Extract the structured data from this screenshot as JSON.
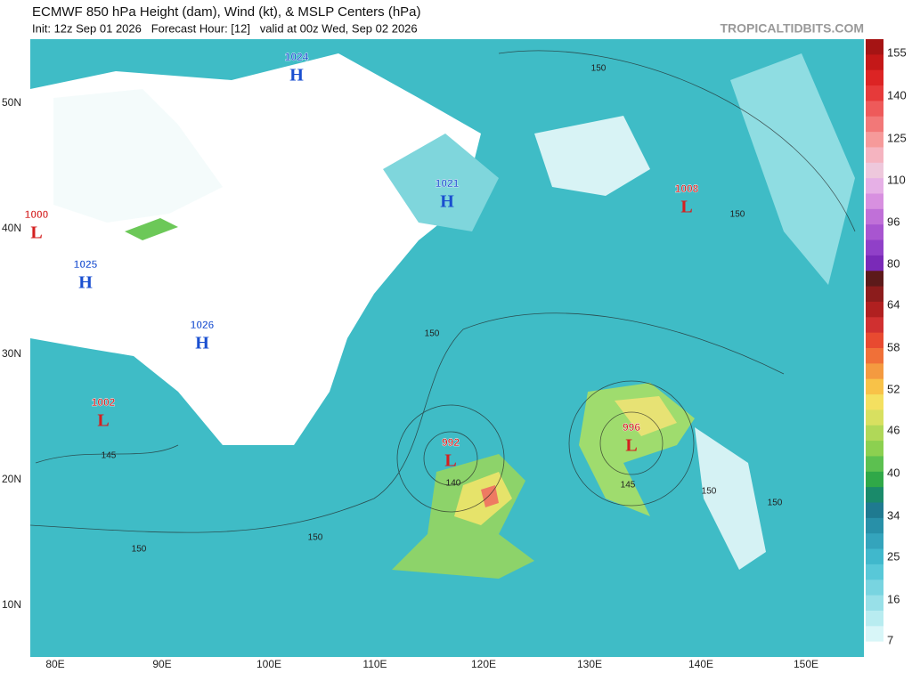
{
  "header": {
    "title": "ECMWF 850 hPa Height (dam), Wind (kt), & MSLP Centers (hPa)",
    "subtitle": "Init: 12z Sep 01 2026   Forecast Hour: [12]   valid at 00z Wed, Sep 02 2026",
    "site": "TROPICALTIDBITS.COM"
  },
  "latitude_labels": [
    "50N",
    "40N",
    "30N",
    "20N",
    "10N"
  ],
  "longitude_labels": [
    "80E",
    "90E",
    "100E",
    "110E",
    "120E",
    "130E",
    "140E",
    "150E"
  ],
  "pressure_centers": [
    {
      "value": "1024",
      "letter": "H"
    },
    {
      "value": "1021",
      "letter": "H"
    },
    {
      "value": "1008",
      "letter": "L"
    },
    {
      "value": "1000",
      "letter": "L"
    },
    {
      "value": "1025",
      "letter": "H"
    },
    {
      "value": "1026",
      "letter": "H"
    },
    {
      "value": "1002",
      "letter": "L"
    },
    {
      "value": "992",
      "letter": "L"
    },
    {
      "value": "996",
      "letter": "L"
    }
  ],
  "contour_labels": [
    "150",
    "150",
    "150",
    "145",
    "140",
    "145",
    "150",
    "150",
    "150",
    "150"
  ],
  "colorbar_labels": [
    "155",
    "140",
    "125",
    "110",
    "96",
    "80",
    "64",
    "58",
    "52",
    "46",
    "40",
    "34",
    "25",
    "16",
    "7"
  ]
}
